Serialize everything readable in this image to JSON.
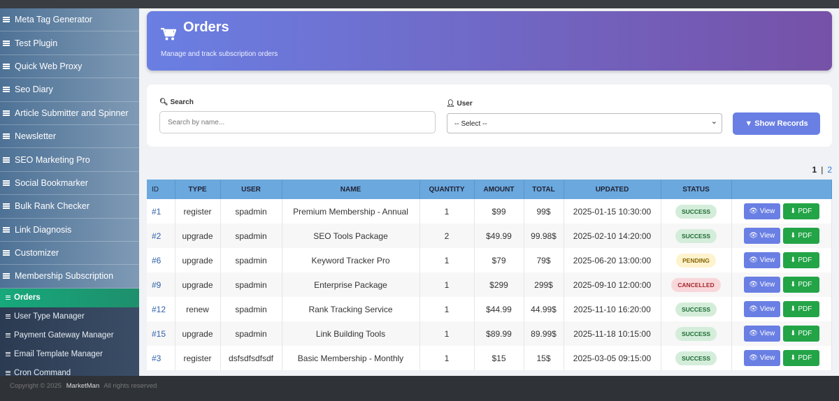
{
  "sidebar": {
    "menu": [
      "Meta Tag Generator",
      "Test Plugin",
      "Quick Web Proxy",
      "Seo Diary",
      "Article Submitter and Spinner",
      "Newsletter",
      "SEO Marketing Pro",
      "Social Bookmarker",
      "Bulk Rank Checker",
      "Link Diagnosis",
      "Customizer",
      "Membership Subscription"
    ],
    "submenu": [
      "Orders",
      "User Type Manager",
      "Payment Gateway Manager",
      "Email Template Manager",
      "Cron Command"
    ]
  },
  "header": {
    "title": "Orders",
    "subtitle": "Manage and track subscription orders"
  },
  "filters": {
    "search_label": "Search",
    "search_placeholder": "Search by name...",
    "user_label": "User",
    "select_default": "-- Select --",
    "button": "Show Records"
  },
  "pagination": {
    "pages": [
      "1",
      "2"
    ],
    "separator": "|"
  },
  "table": {
    "headers": [
      "ID",
      "TYPE",
      "USER",
      "NAME",
      "QUANTITY",
      "AMOUNT",
      "TOTAL",
      "UPDATED",
      "STATUS"
    ],
    "rows": [
      [
        "#1",
        "register",
        "spadmin",
        "Premium Membership - Annual",
        "1",
        "$99",
        "99$",
        "2025-01-15 10:30:00",
        "SUCCESS"
      ],
      [
        "#2",
        "upgrade",
        "spadmin",
        "SEO Tools Package",
        "2",
        "$49.99",
        "99.98$",
        "2025-02-10 14:20:00",
        "SUCCESS"
      ],
      [
        "#6",
        "upgrade",
        "spadmin",
        "Keyword Tracker Pro",
        "1",
        "$79",
        "79$",
        "2025-06-20 13:00:00",
        "PENDING"
      ],
      [
        "#9",
        "upgrade",
        "spadmin",
        "Enterprise Package",
        "1",
        "$299",
        "299$",
        "2025-09-10 12:00:00",
        "CANCELLED"
      ],
      [
        "#12",
        "renew",
        "spadmin",
        "Rank Tracking Service",
        "1",
        "$44.99",
        "44.99$",
        "2025-11-10 16:20:00",
        "SUCCESS"
      ],
      [
        "#15",
        "upgrade",
        "spadmin",
        "Link Building Tools",
        "1",
        "$89.99",
        "89.99$",
        "2025-11-18 10:15:00",
        "SUCCESS"
      ],
      [
        "#3",
        "register",
        "dsfsdfsdfsdf",
        "Basic Membership - Monthly",
        "1",
        "$15",
        "15$",
        "2025-03-05 09:15:00",
        "SUCCESS"
      ]
    ],
    "actions": [
      "View",
      "PDF"
    ]
  },
  "footer": {
    "copyright": "Copyright © 2025",
    "brand": "MarketMan",
    "rights": "All rights reserved"
  }
}
